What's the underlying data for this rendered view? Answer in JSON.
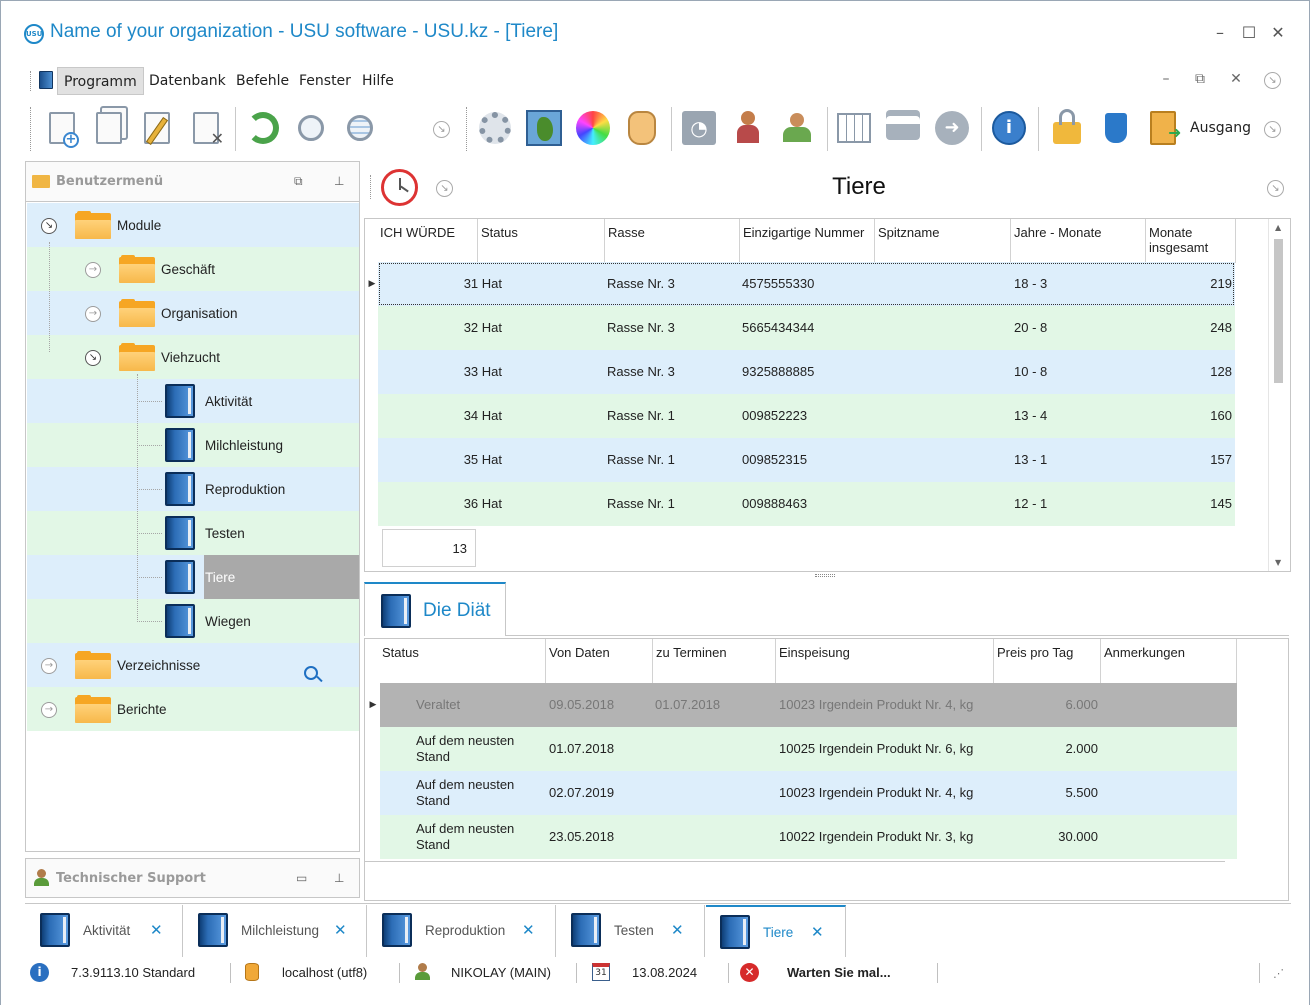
{
  "window": {
    "title": "Name of your organization - USU software - USU.kz - [Tiere]",
    "logo_text": "USU",
    "controls": [
      "–",
      "☐",
      "✕"
    ]
  },
  "menu": {
    "items": [
      "Programm",
      "Datenbank",
      "Befehle",
      "Fenster",
      "Hilfe"
    ],
    "mdi_controls": [
      "–",
      "⧉",
      "✕"
    ]
  },
  "toolbar": {
    "exit_label": "Ausgang"
  },
  "sidebar": {
    "title": "Benutzermenü",
    "tree": [
      {
        "label": "Module"
      },
      {
        "label": "Geschäft"
      },
      {
        "label": "Organisation"
      },
      {
        "label": "Viehzucht"
      },
      {
        "label": "Aktivität"
      },
      {
        "label": "Milchleistung"
      },
      {
        "label": "Reproduktion"
      },
      {
        "label": "Testen"
      },
      {
        "label": "Tiere"
      },
      {
        "label": "Wiegen"
      },
      {
        "label": "Verzeichnisse"
      },
      {
        "label": "Berichte"
      }
    ],
    "support_title": "Technischer Support"
  },
  "main": {
    "title": "Tiere",
    "columns": [
      "ICH WÜRDE",
      "Status",
      "Rasse",
      "Einzigartige Nummer",
      "Spitzname",
      "Jahre - Monate",
      "Monate insgesamt"
    ],
    "rows": [
      {
        "id": "31 Hat",
        "rasse": "Rasse Nr. 3",
        "nummer": "4575555330",
        "spitzname": "",
        "jahre": "18 - 3",
        "monate": "219"
      },
      {
        "id": "32 Hat",
        "rasse": "Rasse Nr. 3",
        "nummer": "5665434344",
        "spitzname": "",
        "jahre": "20 - 8",
        "monate": "248"
      },
      {
        "id": "33 Hat",
        "rasse": "Rasse Nr. 3",
        "nummer": "9325888885",
        "spitzname": "",
        "jahre": "10 - 8",
        "monate": "128"
      },
      {
        "id": "34 Hat",
        "rasse": "Rasse Nr. 1",
        "nummer": "009852223",
        "spitzname": "",
        "jahre": "13 - 4",
        "monate": "160"
      },
      {
        "id": "35 Hat",
        "rasse": "Rasse Nr. 1",
        "nummer": "009852315",
        "spitzname": "",
        "jahre": "13 - 1",
        "monate": "157"
      },
      {
        "id": "36 Hat",
        "rasse": "Rasse Nr. 1",
        "nummer": "009888463",
        "spitzname": "",
        "jahre": "12 - 1",
        "monate": "145"
      }
    ],
    "count": "13"
  },
  "detail": {
    "tab_label": "Die Diät",
    "columns": [
      "Status",
      "Von Daten",
      "zu Terminen",
      "Einspeisung",
      "Preis pro Tag",
      "Anmerkungen"
    ],
    "rows": [
      {
        "status": "Veraltet",
        "von": "09.05.2018",
        "zu": "01.07.2018",
        "einspeisung": "10023 Irgendein Produkt Nr. 4, kg",
        "preis": "6.000",
        "anm": ""
      },
      {
        "status": "Auf dem neusten Stand",
        "von": "01.07.2018",
        "zu": "",
        "einspeisung": "10025 Irgendein Produkt Nr. 6, kg",
        "preis": "2.000",
        "anm": ""
      },
      {
        "status": "Auf dem neusten Stand",
        "von": "02.07.2019",
        "zu": "",
        "einspeisung": "10023 Irgendein Produkt Nr. 4, kg",
        "preis": "5.500",
        "anm": ""
      },
      {
        "status": "Auf dem neusten Stand",
        "von": "23.05.2018",
        "zu": "",
        "einspeisung": "10022 Irgendein Produkt Nr. 3, kg",
        "preis": "30.000",
        "anm": ""
      }
    ]
  },
  "tabs": [
    {
      "label": "Aktivität"
    },
    {
      "label": "Milchleistung"
    },
    {
      "label": "Reproduktion"
    },
    {
      "label": "Testen"
    },
    {
      "label": "Tiere"
    }
  ],
  "statusbar": {
    "version": "7.3.9113.10 Standard",
    "db": "localhost (utf8)",
    "user": "NIKOLAY (MAIN)",
    "calendar_day": "31",
    "date": "13.08.2024",
    "message": "Warten Sie mal..."
  },
  "colors": {
    "accent": "#1e88c8",
    "row_blue": "#ddeefb",
    "row_green": "#e2f7e6",
    "selected_gray": "#a9a9a9"
  }
}
